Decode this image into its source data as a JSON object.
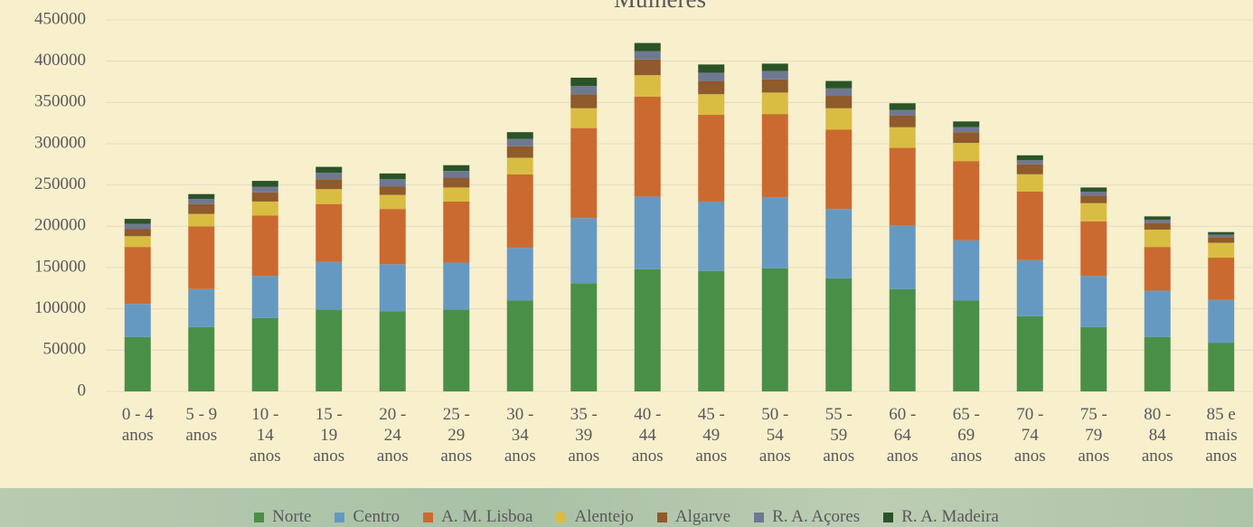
{
  "chart_data": {
    "type": "stacked_bar",
    "title": "Mulheres",
    "categories": [
      "0 - 4 anos",
      "5 - 9 anos",
      "10 - 14 anos",
      "15 - 19 anos",
      "20 - 24 anos",
      "25 - 29 anos",
      "30 - 34 anos",
      "35 - 39 anos",
      "40 - 44 anos",
      "45 - 49 anos",
      "50 - 54 anos",
      "55 - 59 anos",
      "60 - 64 anos",
      "65 - 69 anos",
      "70 - 74 anos",
      "75 - 79 anos",
      "80 - 84 anos",
      "85 e mais anos"
    ],
    "series": [
      {
        "name": "Norte",
        "color": "#4a8f48",
        "values": [
          66000,
          78000,
          89000,
          99000,
          97000,
          99000,
          110000,
          131000,
          148000,
          146000,
          149000,
          137000,
          124000,
          110000,
          91000,
          78000,
          66000,
          59000
        ]
      },
      {
        "name": "Centro",
        "color": "#6699c2",
        "values": [
          40000,
          46000,
          51000,
          58000,
          57000,
          57000,
          64000,
          79000,
          88000,
          84000,
          86000,
          84000,
          77000,
          73000,
          68000,
          62000,
          56000,
          52000
        ]
      },
      {
        "name": "A. M. Lisboa",
        "color": "#cb6a30",
        "values": [
          69000,
          76000,
          73000,
          70000,
          67000,
          74000,
          89000,
          109000,
          121000,
          105000,
          101000,
          96000,
          94000,
          96000,
          83000,
          66000,
          53000,
          51000
        ]
      },
      {
        "name": "Alentejo",
        "color": "#d9bd42",
        "values": [
          13000,
          15000,
          17000,
          18000,
          17000,
          17000,
          20000,
          24000,
          26000,
          25000,
          26000,
          26000,
          25000,
          22000,
          21000,
          22000,
          21000,
          18000
        ]
      },
      {
        "name": "Algarve",
        "color": "#8f5a2c",
        "values": [
          9000,
          12000,
          11000,
          12000,
          10000,
          12000,
          14000,
          17000,
          19000,
          16000,
          16000,
          15000,
          14000,
          13000,
          12000,
          9000,
          8000,
          7000
        ]
      },
      {
        "name": "R. A. Açores",
        "color": "#6f7891",
        "values": [
          6000,
          6000,
          7000,
          8000,
          9000,
          8000,
          9000,
          10000,
          10000,
          10000,
          10000,
          9000,
          7000,
          6000,
          5000,
          5000,
          4000,
          3000
        ]
      },
      {
        "name": "R. A. Madeira",
        "color": "#2b5328",
        "values": [
          6000,
          6000,
          7000,
          7000,
          7000,
          7000,
          8000,
          10000,
          10000,
          10000,
          9000,
          9000,
          8000,
          7000,
          6000,
          5000,
          4000,
          3000
        ]
      }
    ],
    "ylim": [
      0,
      450000
    ],
    "yticks": [
      0,
      50000,
      100000,
      150000,
      200000,
      250000,
      300000,
      350000,
      400000,
      450000
    ],
    "grid": true,
    "legend": "bottom"
  }
}
